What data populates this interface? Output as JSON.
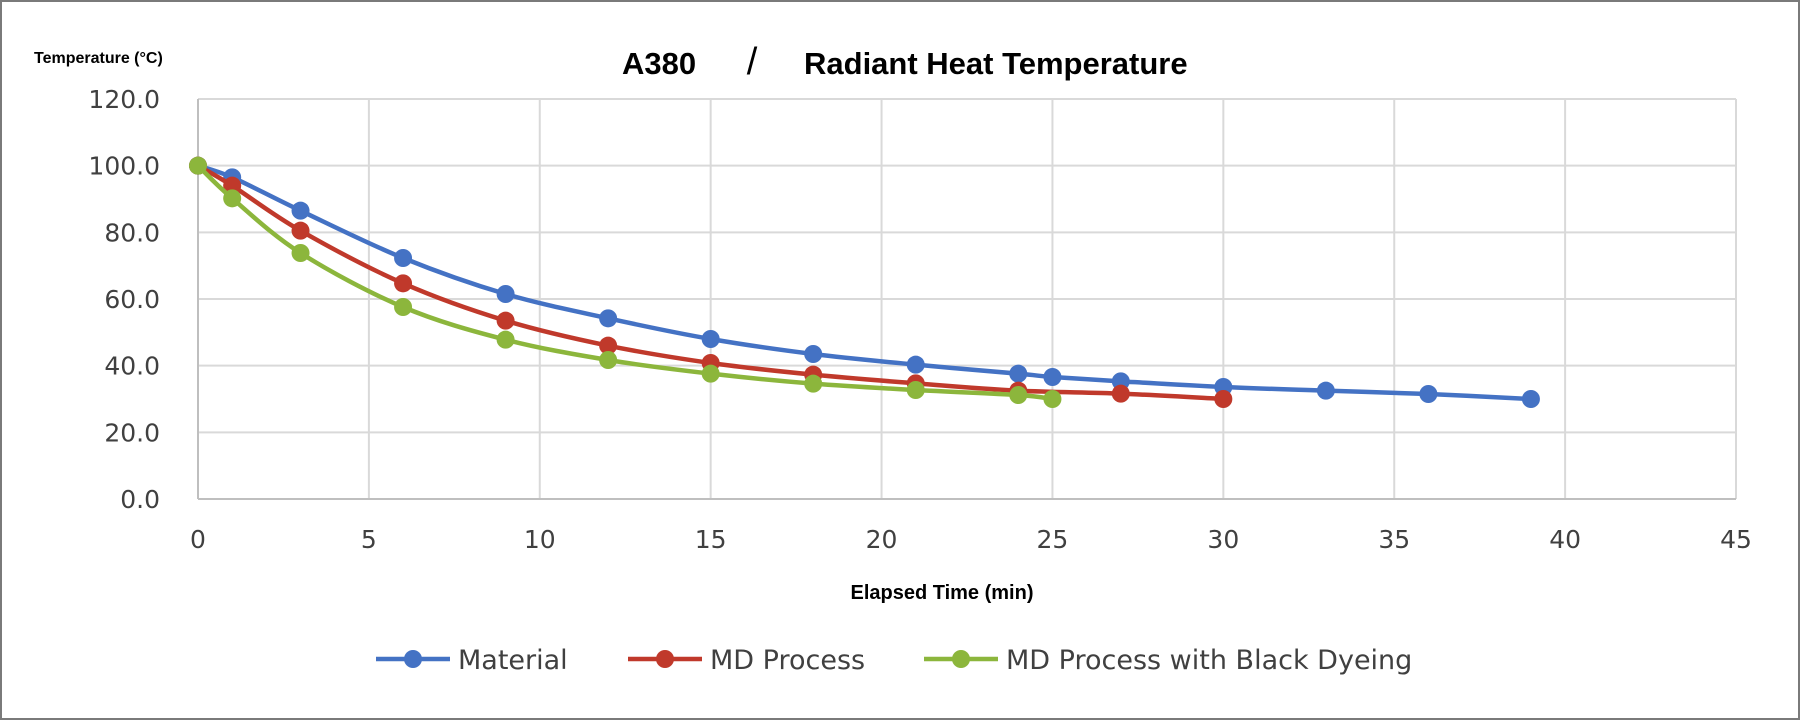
{
  "chart_data": {
    "type": "line",
    "title_left": "A380",
    "title_separator": "/",
    "title_right": "Radiant Heat Temperature",
    "ylabel": "Temperature (°C)",
    "xlabel": "Elapsed Time (min)",
    "xlim": [
      0,
      45
    ],
    "ylim": [
      0,
      120
    ],
    "x_ticks": [
      0,
      5,
      10,
      15,
      20,
      25,
      30,
      35,
      40,
      45
    ],
    "y_ticks": [
      0,
      20,
      40,
      60,
      80,
      100,
      120
    ],
    "x_tick_labels": [
      "0",
      "5",
      "10",
      "15",
      "20",
      "25",
      "30",
      "35",
      "40",
      "45"
    ],
    "y_tick_labels": [
      "0.0",
      "20.0",
      "40.0",
      "60.0",
      "80.0",
      "100.0",
      "120.0"
    ],
    "grid": true,
    "smooth": true,
    "legend_position": "bottom",
    "series": [
      {
        "name": "Material",
        "color": "#4472c4",
        "x": [
          0,
          1,
          3,
          6,
          9,
          12,
          15,
          18,
          21,
          24,
          25,
          27,
          30,
          33,
          36,
          39
        ],
        "y": [
          100,
          96.5,
          86.5,
          72.3,
          61.5,
          54.2,
          48.0,
          43.5,
          40.3,
          37.6,
          36.6,
          35.3,
          33.6,
          32.5,
          31.5,
          30.0
        ]
      },
      {
        "name": "MD Process",
        "color": "#c0392b",
        "x": [
          0,
          1,
          3,
          6,
          9,
          12,
          15,
          18,
          21,
          24,
          27,
          30
        ],
        "y": [
          100,
          94.0,
          80.5,
          64.7,
          53.5,
          46.0,
          40.8,
          37.3,
          34.7,
          32.5,
          31.6,
          30.0
        ]
      },
      {
        "name": "MD Process with Black Dyeing",
        "color": "#8cb63c",
        "x": [
          0,
          1,
          3,
          6,
          9,
          12,
          15,
          18,
          21,
          24,
          25
        ],
        "y": [
          100,
          90.2,
          73.8,
          57.6,
          47.8,
          41.7,
          37.6,
          34.6,
          32.7,
          31.2,
          30.0
        ]
      }
    ]
  }
}
